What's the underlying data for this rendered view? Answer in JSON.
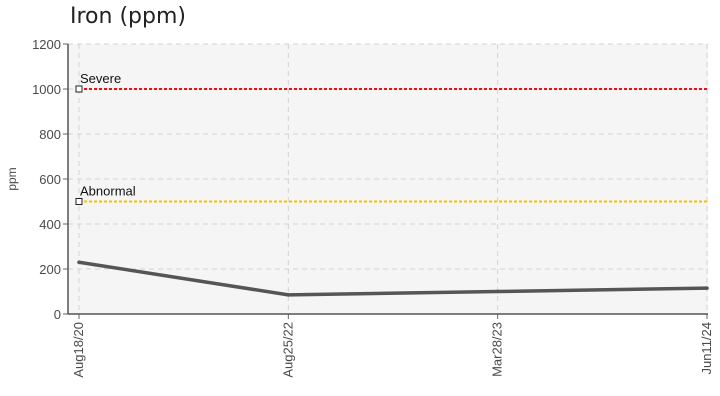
{
  "chart_data": {
    "type": "line",
    "title": "Iron (ppm)",
    "ylabel": "ppm",
    "xlabel": "",
    "categories": [
      "Aug18/20",
      "Aug25/22",
      "Mar28/23",
      "Jun11/24"
    ],
    "series": [
      {
        "values": [
          230,
          85,
          100,
          115
        ],
        "color": "#555555"
      }
    ],
    "thresholds": [
      {
        "label": "Severe",
        "value": 1000,
        "color": "#e8101a"
      },
      {
        "label": "Abnormal",
        "value": 500,
        "color": "#f2c300"
      }
    ],
    "ylim": [
      0,
      1200
    ],
    "yticks": [
      0,
      200,
      400,
      600,
      800,
      1000,
      1200
    ],
    "grid": true,
    "legend": "none"
  }
}
